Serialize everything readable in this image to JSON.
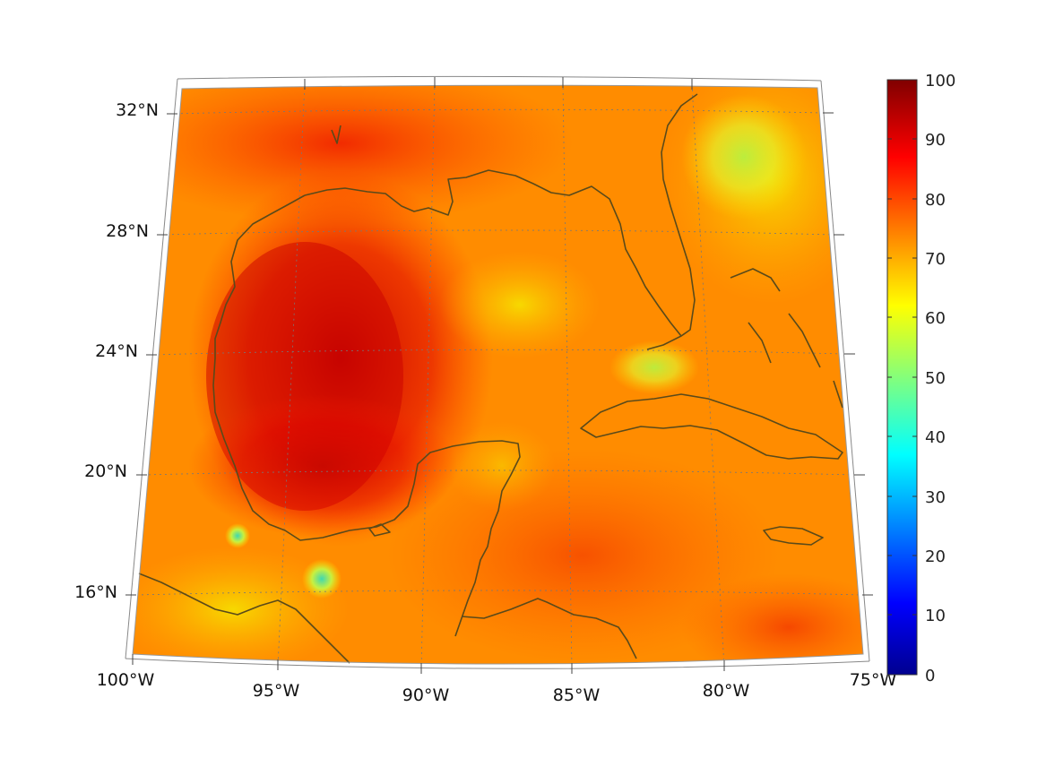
{
  "map": {
    "region": "Gulf of Mexico and Caribbean",
    "lat_labels": [
      "32°N",
      "28°N",
      "24°N",
      "20°N",
      "16°N"
    ],
    "lon_labels": [
      "100°W",
      "95°W",
      "90°W",
      "85°W",
      "80°W",
      "75°W"
    ],
    "coastline_color": "#5a4a1a",
    "gridline_style": "dotted"
  },
  "colorbar": {
    "colormap": "jet",
    "min": 0,
    "max": 100,
    "ticks": [
      "100",
      "90",
      "80",
      "70",
      "60",
      "50",
      "40",
      "30",
      "20",
      "10",
      "0"
    ],
    "stops": [
      "#00008f",
      "#0000ff",
      "#00ffff",
      "#ffff00",
      "#ff0000",
      "#800000"
    ]
  }
}
